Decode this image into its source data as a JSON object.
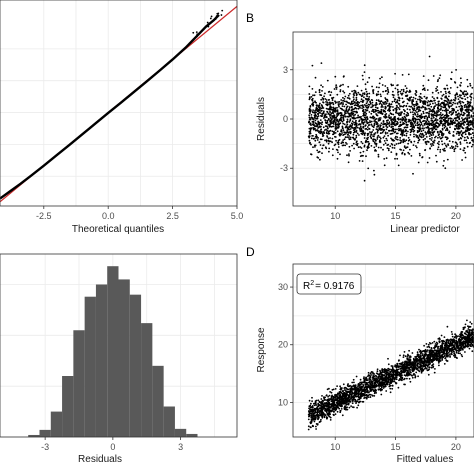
{
  "colors": {
    "grid": "#ebebeb",
    "panel_border": "#333333",
    "points": "#000000",
    "fit_line": "#cc2a2a",
    "bars": "#595959"
  },
  "chart_data": [
    {
      "id": "A",
      "panel_label": "",
      "type": "scatter",
      "xlabel": "Theoretical quantiles",
      "ylabel": "",
      "xlim": [
        -4.2,
        5.0
      ],
      "ylim": [
        -4.4,
        5.3
      ],
      "x_ticks": [
        -2.5,
        0.0,
        2.5,
        5.0
      ],
      "x_tick_labels": [
        "-2.5",
        "0.0",
        "2.5",
        "5.0"
      ],
      "y_ticks": [],
      "reference_line": {
        "slope": 1,
        "intercept": 0
      },
      "qq_points": [
        [
          -4.2,
          -4.05
        ],
        [
          -3.8,
          -3.7
        ],
        [
          -3.4,
          -3.35
        ],
        [
          -3,
          -2.98
        ],
        [
          -2.5,
          -2.5
        ],
        [
          -2,
          -2.01
        ],
        [
          -1.5,
          -1.52
        ],
        [
          -1,
          -1.02
        ],
        [
          -0.5,
          -0.52
        ],
        [
          0,
          -0.02
        ],
        [
          0.5,
          0.47
        ],
        [
          1,
          0.97
        ],
        [
          1.5,
          1.47
        ],
        [
          2,
          1.98
        ],
        [
          2.5,
          2.5
        ],
        [
          3,
          3.05
        ],
        [
          3.4,
          3.55
        ],
        [
          3.8,
          4.05
        ],
        [
          4.1,
          4.35
        ],
        [
          4.3,
          4.6
        ]
      ],
      "grid": true
    },
    {
      "id": "B",
      "panel_label": "B",
      "type": "scatter",
      "xlabel": "Linear predictor",
      "ylabel": "Residuals",
      "xlim": [
        6.5,
        21.5
      ],
      "ylim": [
        -5.3,
        5.3
      ],
      "x_ticks": [
        10,
        15,
        20
      ],
      "x_tick_labels": [
        "10",
        "15",
        "20"
      ],
      "y_ticks": [
        -3,
        0,
        3
      ],
      "y_tick_labels": [
        "-3",
        "0",
        "3"
      ],
      "cloud": {
        "x_range": [
          7.8,
          21.5
        ],
        "y_center": 0,
        "y_sd": 1.0
      },
      "grid": true
    },
    {
      "id": "C",
      "panel_label": "",
      "type": "bar",
      "xlabel": "Residuals",
      "ylabel": "",
      "xlim": [
        -5.0,
        5.5
      ],
      "x_ticks": [
        -3,
        0,
        3
      ],
      "x_tick_labels": [
        "-3",
        "0",
        "3"
      ],
      "bins": [
        {
          "x0": -3.75,
          "x1": -3.25,
          "count": 2
        },
        {
          "x0": -3.25,
          "x1": -2.75,
          "count": 7
        },
        {
          "x0": -2.75,
          "x1": -2.25,
          "count": 25
        },
        {
          "x0": -2.25,
          "x1": -1.75,
          "count": 60
        },
        {
          "x0": -1.75,
          "x1": -1.25,
          "count": 105
        },
        {
          "x0": -1.25,
          "x1": -0.75,
          "count": 138
        },
        {
          "x0": -0.75,
          "x1": -0.25,
          "count": 150
        },
        {
          "x0": -0.25,
          "x1": 0.25,
          "count": 168
        },
        {
          "x0": 0.25,
          "x1": 0.75,
          "count": 155
        },
        {
          "x0": 0.75,
          "x1": 1.25,
          "count": 140
        },
        {
          "x0": 1.25,
          "x1": 1.75,
          "count": 112
        },
        {
          "x0": 1.75,
          "x1": 2.25,
          "count": 70
        },
        {
          "x0": 2.25,
          "x1": 2.75,
          "count": 30
        },
        {
          "x0": 2.75,
          "x1": 3.25,
          "count": 8
        },
        {
          "x0": 3.25,
          "x1": 3.75,
          "count": 3
        }
      ],
      "ylim": [
        0,
        180
      ],
      "grid": true
    },
    {
      "id": "D",
      "panel_label": "D",
      "type": "scatter",
      "xlabel": "Fitted values",
      "ylabel": "Response",
      "xlim": [
        6.5,
        21.5
      ],
      "ylim": [
        4.0,
        34.0
      ],
      "x_ticks": [
        10,
        15,
        20
      ],
      "x_tick_labels": [
        "10",
        "15",
        "20"
      ],
      "y_ticks": [
        10,
        20,
        30
      ],
      "y_tick_labels": [
        "10",
        "20",
        "30"
      ],
      "cloud": {
        "x_range": [
          7.8,
          21.5
        ],
        "slope": 1,
        "intercept": 0,
        "y_sd": 1.0
      },
      "annotation": {
        "r2_symbol": "R",
        "r2_exponent": "2",
        "r2_value": "= 0.9176"
      },
      "grid": true
    }
  ]
}
